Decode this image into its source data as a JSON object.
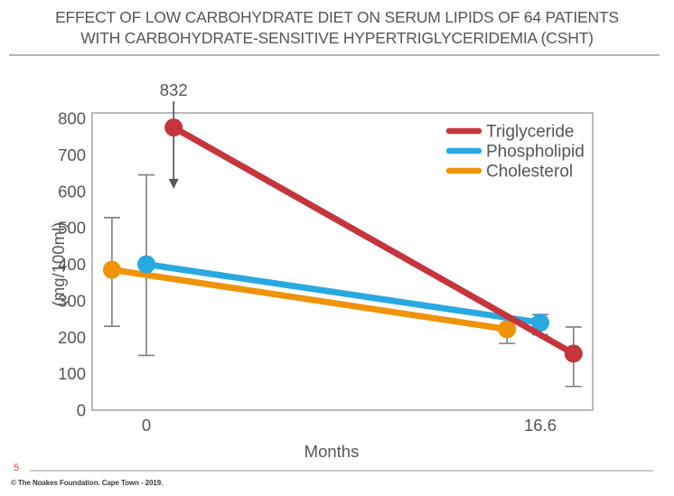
{
  "title": {
    "line1": "EFFECT OF LOW CARBOHYDRATE DIET ON SERUM LIPIDS OF 64 PATIENTS",
    "line2": "WITH CARBOHYDRATE-SENSITIVE HYPERTRIGLYCERIDEMIA (CSHT)"
  },
  "footer": {
    "page_number": "5",
    "copyright": "© The Noakes Foundation. Cape Town - 2019."
  },
  "colors": {
    "text": "#54565b",
    "axis": "#a3a3a8",
    "error_bar": "#7d7d82",
    "triglyceride": "#c6353d",
    "phospholipid": "#29a9e1",
    "cholesterol": "#ef9309",
    "page_number": "#e04b4b"
  },
  "chart_data": {
    "type": "line",
    "title": "",
    "xlabel": "Months",
    "ylabel": "(mg/100ml)",
    "xlim": [
      -2.3,
      18.8
    ],
    "ylim": [
      0,
      815
    ],
    "grid": false,
    "y_ticks": [
      0,
      100,
      200,
      300,
      400,
      500,
      600,
      700,
      800
    ],
    "x_ticks": [
      {
        "value": 0,
        "label": "0"
      },
      {
        "value": 16.6,
        "label": "16.6"
      }
    ],
    "legend": {
      "position": "top-right",
      "entries": [
        {
          "label": "Triglyceride",
          "color_key": "triglyceride"
        },
        {
          "label": "Phospholipid",
          "color_key": "phospholipid"
        },
        {
          "label": "Cholesterol",
          "color_key": "cholesterol"
        }
      ]
    },
    "series": [
      {
        "name": "Cholesterol",
        "color_key": "cholesterol",
        "points": [
          {
            "x": 0,
            "x_draw": -1.45,
            "value": 385,
            "err_low": 230,
            "err_high": 528
          },
          {
            "x": 16.6,
            "x_draw": 15.2,
            "value": 222,
            "err_low": 183,
            "err_high": 255
          }
        ]
      },
      {
        "name": "Phospholipid",
        "color_key": "phospholipid",
        "points": [
          {
            "x": 0,
            "x_draw": 0,
            "value": 400,
            "err_low": 150,
            "err_high": 645
          },
          {
            "x": 16.6,
            "x_draw": 16.6,
            "value": 240,
            "err_low": 207,
            "err_high": 262
          }
        ]
      },
      {
        "name": "Triglyceride",
        "color_key": "triglyceride",
        "points": [
          {
            "x": 0,
            "x_draw": 1.15,
            "value": 832,
            "value_draw": 775,
            "annotation": "832"
          },
          {
            "x": 16.6,
            "x_draw": 18.0,
            "value": 155,
            "err_low": 65,
            "err_high": 228
          }
        ]
      }
    ]
  }
}
